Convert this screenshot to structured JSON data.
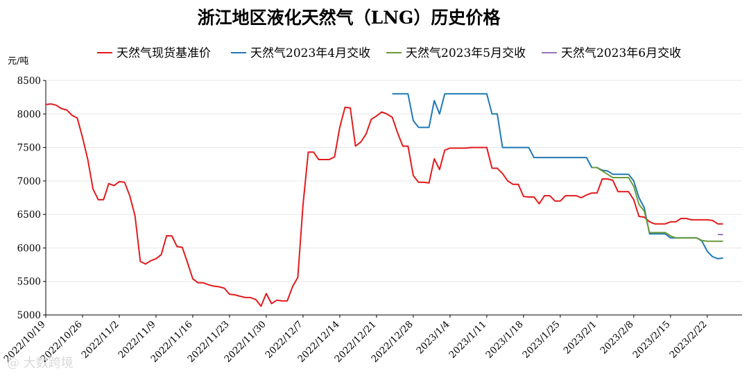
{
  "watermark": "@ 大数跨境",
  "chart_data": {
    "type": "line",
    "title": "浙江地区液化天然气（LNG）历史价格",
    "ylabel": "元/吨",
    "xlabel": "",
    "ylim": [
      5000,
      8500
    ],
    "yticks": [
      5000,
      5500,
      6000,
      6500,
      7000,
      7500,
      8000,
      8500
    ],
    "xlim": [
      "2022-10-19",
      "2023-02-24"
    ],
    "xticks": [
      "2022/10/19",
      "2022/10/26",
      "2022/11/2",
      "2022/11/9",
      "2022/11/16",
      "2022/11/23",
      "2022/11/30",
      "2022/12/7",
      "2022/12/14",
      "2022/12/21",
      "2022/12/28",
      "2023/1/4",
      "2023/1/11",
      "2023/1/18",
      "2023/1/25",
      "2023/2/1",
      "2023/2/8",
      "2023/2/15",
      "2023/2/22"
    ],
    "grid": true,
    "legend_position": "top",
    "series": [
      {
        "name": "天然气现货基准价",
        "color": "#e31a1c",
        "points": [
          [
            "2022-10-19",
            8140
          ],
          [
            "2022-10-20",
            8150
          ],
          [
            "2022-10-21",
            8130
          ],
          [
            "2022-10-22",
            8080
          ],
          [
            "2022-10-23",
            8060
          ],
          [
            "2022-10-24",
            7980
          ],
          [
            "2022-10-25",
            7940
          ],
          [
            "2022-10-26",
            7650
          ],
          [
            "2022-10-27",
            7320
          ],
          [
            "2022-10-28",
            6880
          ],
          [
            "2022-10-29",
            6720
          ],
          [
            "2022-10-30",
            6720
          ],
          [
            "2022-10-31",
            6960
          ],
          [
            "2022-11-01",
            6930
          ],
          [
            "2022-11-02",
            6990
          ],
          [
            "2022-11-03",
            6980
          ],
          [
            "2022-11-04",
            6780
          ],
          [
            "2022-11-05",
            6480
          ],
          [
            "2022-11-06",
            5800
          ],
          [
            "2022-11-07",
            5760
          ],
          [
            "2022-11-08",
            5810
          ],
          [
            "2022-11-09",
            5840
          ],
          [
            "2022-11-10",
            5900
          ],
          [
            "2022-11-11",
            6180
          ],
          [
            "2022-11-12",
            6180
          ],
          [
            "2022-11-13",
            6020
          ],
          [
            "2022-11-14",
            6010
          ],
          [
            "2022-11-15",
            5780
          ],
          [
            "2022-11-16",
            5540
          ],
          [
            "2022-11-17",
            5480
          ],
          [
            "2022-11-18",
            5480
          ],
          [
            "2022-11-19",
            5450
          ],
          [
            "2022-11-20",
            5430
          ],
          [
            "2022-11-21",
            5420
          ],
          [
            "2022-11-22",
            5400
          ],
          [
            "2022-11-23",
            5310
          ],
          [
            "2022-11-24",
            5300
          ],
          [
            "2022-11-25",
            5280
          ],
          [
            "2022-11-26",
            5260
          ],
          [
            "2022-11-27",
            5260
          ],
          [
            "2022-11-28",
            5230
          ],
          [
            "2022-11-29",
            5130
          ],
          [
            "2022-11-30",
            5320
          ],
          [
            "2022-12-01",
            5170
          ],
          [
            "2022-12-02",
            5220
          ],
          [
            "2022-12-03",
            5210
          ],
          [
            "2022-12-04",
            5210
          ],
          [
            "2022-12-05",
            5420
          ],
          [
            "2022-12-06",
            5560
          ],
          [
            "2022-12-07",
            6640
          ],
          [
            "2022-12-08",
            7430
          ],
          [
            "2022-12-09",
            7430
          ],
          [
            "2022-12-10",
            7320
          ],
          [
            "2022-12-11",
            7320
          ],
          [
            "2022-12-12",
            7320
          ],
          [
            "2022-12-13",
            7360
          ],
          [
            "2022-12-14",
            7800
          ],
          [
            "2022-12-15",
            8100
          ],
          [
            "2022-12-16",
            8090
          ],
          [
            "2022-12-17",
            7520
          ],
          [
            "2022-12-18",
            7580
          ],
          [
            "2022-12-19",
            7700
          ],
          [
            "2022-12-20",
            7920
          ],
          [
            "2022-12-21",
            7970
          ],
          [
            "2022-12-22",
            8030
          ],
          [
            "2022-12-23",
            8000
          ],
          [
            "2022-12-24",
            7950
          ],
          [
            "2022-12-25",
            7720
          ],
          [
            "2022-12-26",
            7520
          ],
          [
            "2022-12-27",
            7520
          ],
          [
            "2022-12-28",
            7080
          ],
          [
            "2022-12-29",
            6980
          ],
          [
            "2022-12-30",
            6980
          ],
          [
            "2022-12-31",
            6970
          ],
          [
            "2023-01-01",
            7330
          ],
          [
            "2023-01-02",
            7170
          ],
          [
            "2023-01-03",
            7460
          ],
          [
            "2023-01-04",
            7490
          ],
          [
            "2023-01-05",
            7490
          ],
          [
            "2023-01-06",
            7490
          ],
          [
            "2023-01-07",
            7490
          ],
          [
            "2023-01-08",
            7500
          ],
          [
            "2023-01-09",
            7500
          ],
          [
            "2023-01-10",
            7500
          ],
          [
            "2023-01-11",
            7500
          ],
          [
            "2023-01-12",
            7190
          ],
          [
            "2023-01-13",
            7190
          ],
          [
            "2023-01-14",
            7110
          ],
          [
            "2023-01-15",
            7000
          ],
          [
            "2023-01-16",
            6950
          ],
          [
            "2023-01-17",
            6950
          ],
          [
            "2023-01-18",
            6770
          ],
          [
            "2023-01-19",
            6760
          ],
          [
            "2023-01-20",
            6760
          ],
          [
            "2023-01-21",
            6660
          ],
          [
            "2023-01-22",
            6780
          ],
          [
            "2023-01-23",
            6780
          ],
          [
            "2023-01-24",
            6700
          ],
          [
            "2023-01-25",
            6700
          ],
          [
            "2023-01-26",
            6780
          ],
          [
            "2023-01-27",
            6780
          ],
          [
            "2023-01-28",
            6780
          ],
          [
            "2023-01-29",
            6750
          ],
          [
            "2023-01-30",
            6790
          ],
          [
            "2023-01-31",
            6820
          ],
          [
            "2023-02-01",
            6820
          ],
          [
            "2023-02-02",
            7030
          ],
          [
            "2023-02-03",
            7030
          ],
          [
            "2023-02-04",
            7010
          ],
          [
            "2023-02-05",
            6840
          ],
          [
            "2023-02-06",
            6840
          ],
          [
            "2023-02-07",
            6840
          ],
          [
            "2023-02-08",
            6720
          ],
          [
            "2023-02-09",
            6470
          ],
          [
            "2023-02-10",
            6460
          ],
          [
            "2023-02-11",
            6390
          ],
          [
            "2023-02-12",
            6360
          ],
          [
            "2023-02-13",
            6360
          ],
          [
            "2023-02-14",
            6360
          ],
          [
            "2023-02-15",
            6390
          ],
          [
            "2023-02-16",
            6390
          ],
          [
            "2023-02-17",
            6440
          ],
          [
            "2023-02-18",
            6440
          ],
          [
            "2023-02-19",
            6420
          ],
          [
            "2023-02-20",
            6420
          ],
          [
            "2023-02-21",
            6420
          ],
          [
            "2023-02-22",
            6420
          ],
          [
            "2023-02-23",
            6410
          ],
          [
            "2023-02-24",
            6360
          ],
          [
            "2023-02-25",
            6360
          ]
        ]
      },
      {
        "name": "天然气2023年4月交收",
        "color": "#1f78b4",
        "points": [
          [
            "2022-12-24",
            8300
          ],
          [
            "2022-12-25",
            8300
          ],
          [
            "2022-12-26",
            8300
          ],
          [
            "2022-12-27",
            8300
          ],
          [
            "2022-12-28",
            7900
          ],
          [
            "2022-12-29",
            7800
          ],
          [
            "2022-12-30",
            7800
          ],
          [
            "2022-12-31",
            7800
          ],
          [
            "2023-01-01",
            8200
          ],
          [
            "2023-01-02",
            8000
          ],
          [
            "2023-01-03",
            8300
          ],
          [
            "2023-01-04",
            8300
          ],
          [
            "2023-01-05",
            8300
          ],
          [
            "2023-01-06",
            8300
          ],
          [
            "2023-01-07",
            8300
          ],
          [
            "2023-01-08",
            8300
          ],
          [
            "2023-01-09",
            8300
          ],
          [
            "2023-01-10",
            8300
          ],
          [
            "2023-01-11",
            8300
          ],
          [
            "2023-01-12",
            8000
          ],
          [
            "2023-01-13",
            8000
          ],
          [
            "2023-01-14",
            7500
          ],
          [
            "2023-01-15",
            7500
          ],
          [
            "2023-01-16",
            7500
          ],
          [
            "2023-01-17",
            7500
          ],
          [
            "2023-01-18",
            7500
          ],
          [
            "2023-01-19",
            7500
          ],
          [
            "2023-01-20",
            7350
          ],
          [
            "2023-01-21",
            7350
          ],
          [
            "2023-01-22",
            7350
          ],
          [
            "2023-01-23",
            7350
          ],
          [
            "2023-01-24",
            7350
          ],
          [
            "2023-01-25",
            7350
          ],
          [
            "2023-01-26",
            7350
          ],
          [
            "2023-01-27",
            7350
          ],
          [
            "2023-01-28",
            7350
          ],
          [
            "2023-01-29",
            7350
          ],
          [
            "2023-01-30",
            7350
          ],
          [
            "2023-01-31",
            7200
          ],
          [
            "2023-02-01",
            7200
          ],
          [
            "2023-02-02",
            7160
          ],
          [
            "2023-02-03",
            7150
          ],
          [
            "2023-02-04",
            7100
          ],
          [
            "2023-02-05",
            7100
          ],
          [
            "2023-02-06",
            7100
          ],
          [
            "2023-02-07",
            7100
          ],
          [
            "2023-02-08",
            7000
          ],
          [
            "2023-02-09",
            6750
          ],
          [
            "2023-02-10",
            6600
          ],
          [
            "2023-02-11",
            6210
          ],
          [
            "2023-02-12",
            6210
          ],
          [
            "2023-02-13",
            6210
          ],
          [
            "2023-02-14",
            6210
          ],
          [
            "2023-02-15",
            6150
          ],
          [
            "2023-02-16",
            6150
          ],
          [
            "2023-02-17",
            6150
          ],
          [
            "2023-02-18",
            6150
          ],
          [
            "2023-02-19",
            6150
          ],
          [
            "2023-02-20",
            6150
          ],
          [
            "2023-02-21",
            6100
          ],
          [
            "2023-02-22",
            5950
          ],
          [
            "2023-02-23",
            5870
          ],
          [
            "2023-02-24",
            5840
          ],
          [
            "2023-02-25",
            5850
          ]
        ]
      },
      {
        "name": "天然气2023年5月交收",
        "color": "#6a9a3a",
        "points": [
          [
            "2023-01-31",
            7200
          ],
          [
            "2023-02-01",
            7200
          ],
          [
            "2023-02-02",
            7150
          ],
          [
            "2023-02-03",
            7100
          ],
          [
            "2023-02-04",
            7050
          ],
          [
            "2023-02-05",
            7050
          ],
          [
            "2023-02-06",
            7050
          ],
          [
            "2023-02-07",
            7050
          ],
          [
            "2023-02-08",
            6920
          ],
          [
            "2023-02-09",
            6650
          ],
          [
            "2023-02-10",
            6550
          ],
          [
            "2023-02-11",
            6230
          ],
          [
            "2023-02-12",
            6230
          ],
          [
            "2023-02-13",
            6230
          ],
          [
            "2023-02-14",
            6230
          ],
          [
            "2023-02-15",
            6180
          ],
          [
            "2023-02-16",
            6150
          ],
          [
            "2023-02-17",
            6150
          ],
          [
            "2023-02-18",
            6150
          ],
          [
            "2023-02-19",
            6150
          ],
          [
            "2023-02-20",
            6150
          ],
          [
            "2023-02-21",
            6110
          ],
          [
            "2023-02-22",
            6100
          ],
          [
            "2023-02-23",
            6100
          ],
          [
            "2023-02-24",
            6100
          ],
          [
            "2023-02-25",
            6100
          ]
        ]
      },
      {
        "name": "天然气2023年6月交收",
        "color": "#9b6fc2",
        "points": [
          [
            "2023-02-24",
            6200
          ],
          [
            "2023-02-25",
            6200
          ]
        ]
      }
    ]
  }
}
